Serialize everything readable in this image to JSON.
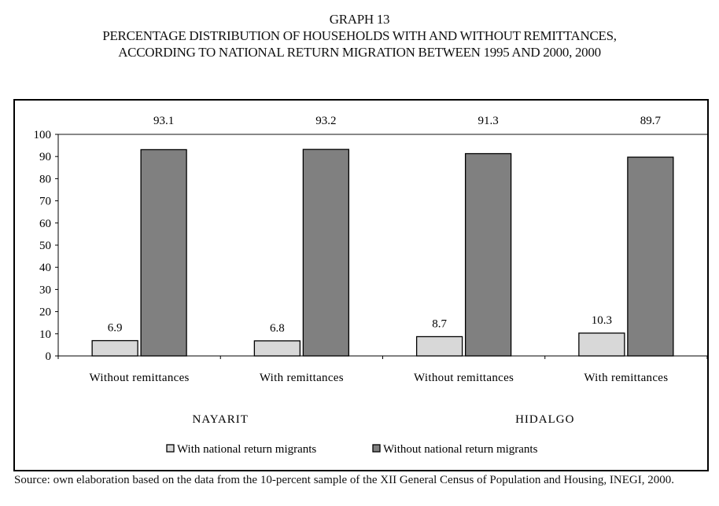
{
  "title": {
    "line1": "GRAPH 13",
    "line2": "PERCENTAGE DISTRIBUTION OF HOUSEHOLDS WITH AND WITHOUT REMITTANCES,",
    "line3": "ACCORDING TO NATIONAL RETURN MIGRATION BETWEEN 1995 AND 2000, 2000"
  },
  "chart_data": {
    "type": "bar",
    "categories": [
      "Without remittances",
      "With remittances",
      "Without remittances",
      "With remittances"
    ],
    "groups": [
      {
        "label": "NAYARIT",
        "categories": [
          0,
          1
        ]
      },
      {
        "label": "HIDALGO",
        "categories": [
          2,
          3
        ]
      }
    ],
    "series": [
      {
        "name": "With national return migrants",
        "values": [
          6.9,
          6.8,
          8.7,
          10.3
        ],
        "color": "#d8d8d8"
      },
      {
        "name": "Without national return migrants",
        "values": [
          93.1,
          93.2,
          91.3,
          89.7
        ],
        "color": "#808080"
      }
    ],
    "ylim": [
      0,
      100
    ],
    "yticks": [
      "0",
      "10",
      "20",
      "30",
      "40",
      "50",
      "60",
      "70",
      "80",
      "90",
      "100"
    ],
    "legend_position": "bottom",
    "grid": false
  },
  "source": "Source: own elaboration based on the data from the 10-percent sample of the XII General Census of Population and Housing, INEGI, 2000."
}
